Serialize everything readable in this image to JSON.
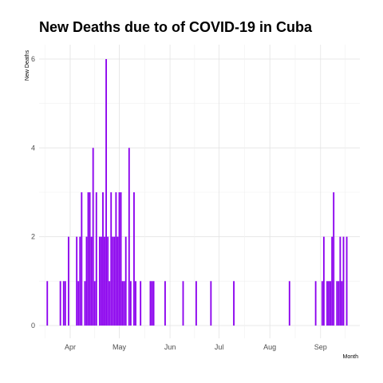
{
  "chart_data": {
    "type": "bar",
    "title": "New Deaths due to of COVID-19 in Cuba",
    "xlabel": "Month",
    "ylabel": "New Deaths",
    "ylim": [
      0,
      6.3
    ],
    "yticks": [
      0,
      2,
      4,
      6
    ],
    "xticks": [
      {
        "label": "Apr",
        "date": "2020-04-01"
      },
      {
        "label": "May",
        "date": "2020-05-01"
      },
      {
        "label": "Jun",
        "date": "2020-06-01"
      },
      {
        "label": "Jul",
        "date": "2020-07-01"
      },
      {
        "label": "Aug",
        "date": "2020-08-01"
      },
      {
        "label": "Sep",
        "date": "2020-09-01"
      }
    ],
    "xlim": [
      "2020-03-13",
      "2020-09-25"
    ],
    "grid": true,
    "bar_color": "#8B00EE",
    "x": [
      "2020-03-18",
      "2020-03-26",
      "2020-03-28",
      "2020-03-29",
      "2020-03-31",
      "2020-04-05",
      "2020-04-06",
      "2020-04-07",
      "2020-04-08",
      "2020-04-10",
      "2020-04-11",
      "2020-04-12",
      "2020-04-13",
      "2020-04-14",
      "2020-04-15",
      "2020-04-16",
      "2020-04-17",
      "2020-04-19",
      "2020-04-20",
      "2020-04-21",
      "2020-04-22",
      "2020-04-23",
      "2020-04-24",
      "2020-04-25",
      "2020-04-26",
      "2020-04-27",
      "2020-04-28",
      "2020-04-29",
      "2020-04-30",
      "2020-05-01",
      "2020-05-02",
      "2020-05-03",
      "2020-05-04",
      "2020-05-05",
      "2020-05-07",
      "2020-05-08",
      "2020-05-10",
      "2020-05-11",
      "2020-05-14",
      "2020-05-20",
      "2020-05-21",
      "2020-05-22",
      "2020-05-29",
      "2020-06-09",
      "2020-06-17",
      "2020-06-26",
      "2020-07-10",
      "2020-08-13",
      "2020-08-29",
      "2020-09-02",
      "2020-09-03",
      "2020-09-05",
      "2020-09-06",
      "2020-09-07",
      "2020-09-08",
      "2020-09-09",
      "2020-09-11",
      "2020-09-12",
      "2020-09-13",
      "2020-09-14",
      "2020-09-15",
      "2020-09-17"
    ],
    "values": [
      1,
      1,
      1,
      1,
      2,
      2,
      1,
      2,
      3,
      1,
      2,
      3,
      3,
      2,
      4,
      1,
      3,
      2,
      2,
      3,
      2,
      6,
      2,
      1,
      3,
      2,
      2,
      3,
      2,
      3,
      3,
      1,
      1,
      2,
      4,
      1,
      3,
      1,
      1,
      1,
      1,
      1,
      1,
      1,
      1,
      1,
      1,
      1,
      1,
      1,
      2,
      1,
      1,
      1,
      2,
      3,
      1,
      1,
      2,
      1,
      2,
      2
    ]
  }
}
